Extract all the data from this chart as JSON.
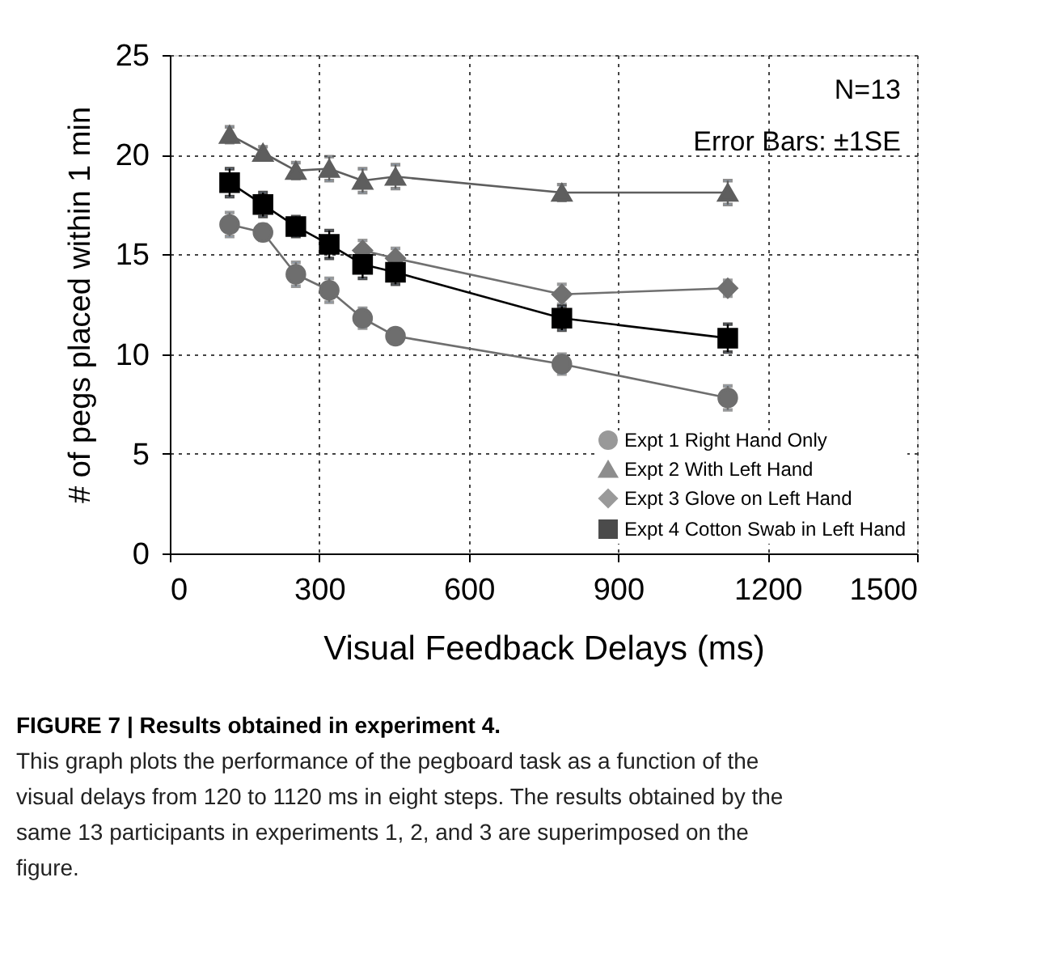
{
  "chart_data": {
    "type": "line",
    "xlabel": "Visual Feedback Delays (ms)",
    "ylabel": "# of pegs placed within 1 min",
    "x": [
      120,
      187,
      253,
      320,
      387,
      453,
      787,
      1120
    ],
    "series": [
      {
        "name": "Expt 1 Right Hand Only",
        "color": "#6e6e6e",
        "marker": "circle",
        "values": [
          16.5,
          16.1,
          14.0,
          13.2,
          11.8,
          10.9,
          9.5,
          7.8
        ],
        "errors": [
          0.6,
          0.4,
          0.6,
          0.6,
          0.5,
          0.3,
          0.5,
          0.6
        ]
      },
      {
        "name": "Expt 2 With Left Hand",
        "color": "#5e5e5e",
        "marker": "triangle",
        "values": [
          21.0,
          20.1,
          19.2,
          19.3,
          18.7,
          18.9,
          18.1,
          18.1
        ],
        "errors": [
          0.4,
          0.3,
          0.4,
          0.6,
          0.6,
          0.6,
          0.4,
          0.6
        ]
      },
      {
        "name": "Expt 3 Glove on Left Hand",
        "color": "#707070",
        "marker": "diamond",
        "values": [
          null,
          null,
          null,
          null,
          15.2,
          14.8,
          13.0,
          13.3
        ],
        "errors": [
          null,
          null,
          null,
          null,
          0.5,
          0.5,
          0.5,
          0.4
        ]
      },
      {
        "name": "Expt 4 Cotton Swab in Left Hand",
        "color": "#000000",
        "marker": "square",
        "values": [
          18.6,
          17.5,
          16.4,
          15.5,
          14.5,
          14.1,
          11.8,
          10.8
        ],
        "errors": [
          0.7,
          0.6,
          0.5,
          0.7,
          0.7,
          0.6,
          0.6,
          0.7
        ]
      }
    ],
    "xlim": [
      0,
      1500
    ],
    "xticks": [
      0,
      300,
      600,
      900,
      1200,
      1500
    ],
    "ylim": [
      0,
      25
    ],
    "yticks": [
      0,
      5,
      10,
      15,
      20,
      25
    ],
    "grid": true,
    "legend": "bottom right",
    "line_style": "solid",
    "annotations": [
      "N=13",
      "Error Bars: ±1SE",
      "FIGURE 7 | Results obtained in experiment 4.",
      "This graph plots the performance of the pegboard task as a function of the visual delays from 120 to 1120 ms in eight steps. The results obtained by the same 13 participants in experiments 1, 2, and 3 are superimposed on the figure."
    ]
  }
}
